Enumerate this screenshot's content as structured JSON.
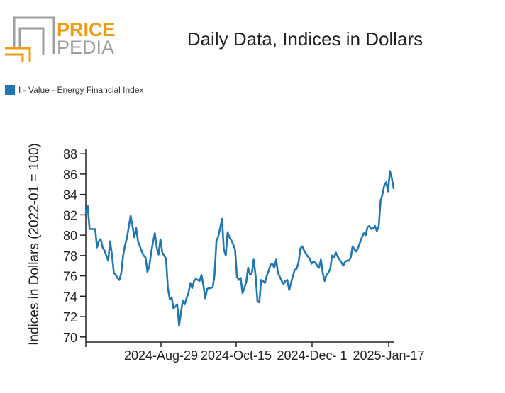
{
  "logo": {
    "line1": "PRICE",
    "line2": "PEDIA"
  },
  "chart_data": {
    "type": "line",
    "title": "Daily Data, Indices in Dollars",
    "xlabel": "",
    "ylabel": "Indices in Dollars (2022-01 = 100)",
    "ylim": [
      69.5,
      88.5
    ],
    "yticks": [
      70,
      72,
      74,
      76,
      78,
      80,
      82,
      84,
      86,
      88
    ],
    "xtick_labels": [
      "2024-Aug-29",
      "2024-Oct-15",
      "2024-Dec- 1",
      "2025-Jan-17"
    ],
    "grid": false,
    "legend_position": "top-left",
    "series": [
      {
        "name": "I - Value - Energy Financial Index",
        "color": "#1f77b4",
        "values": [
          82.2,
          82.9,
          80.6,
          80.6,
          80.6,
          80.6,
          78.8,
          79.4,
          79.6,
          78.8,
          78.5,
          78.0,
          77.5,
          79.4,
          78.1,
          76.3,
          76.1,
          75.8,
          75.6,
          76.3,
          78.0,
          79.0,
          79.7,
          80.8,
          81.9,
          80.9,
          79.8,
          80.7,
          79.4,
          78.9,
          78.4,
          78.0,
          77.8,
          76.4,
          76.9,
          78.3,
          79.3,
          80.2,
          78.8,
          78.1,
          79.6,
          78.3,
          78.0,
          77.7,
          74.8,
          73.7,
          73.9,
          72.8,
          73.0,
          73.2,
          71.1,
          72.4,
          73.6,
          73.2,
          73.8,
          74.3,
          75.3,
          74.8,
          75.5,
          75.7,
          75.6,
          75.5,
          76.1,
          75.1,
          73.8,
          74.7,
          74.8,
          74.8,
          74.9,
          76.1,
          79.4,
          79.9,
          80.7,
          81.6,
          78.6,
          78.0,
          80.3,
          79.8,
          79.5,
          79.1,
          78.6,
          75.9,
          75.6,
          75.8,
          74.3,
          74.8,
          75.4,
          76.8,
          76.1,
          76.3,
          77.6,
          76.0,
          73.5,
          73.4,
          75.6,
          75.5,
          75.3,
          76.0,
          76.5,
          77.1,
          77.2,
          76.8,
          77.6,
          76.3,
          75.9,
          75.5,
          75.2,
          75.5,
          75.6,
          74.6,
          75.3,
          76.0,
          76.6,
          76.7,
          77.3,
          78.7,
          78.9,
          78.5,
          78.2,
          77.9,
          77.7,
          77.2,
          77.4,
          77.3,
          77.0,
          76.8,
          77.6,
          76.3,
          75.5,
          76.1,
          76.3,
          76.7,
          78.0,
          77.8,
          78.3,
          77.9,
          77.6,
          77.3,
          77.0,
          77.4,
          77.5,
          77.5,
          77.8,
          78.9,
          78.6,
          78.4,
          78.8,
          79.3,
          79.8,
          80.2,
          80.0,
          80.8,
          80.9,
          80.6,
          80.7,
          80.9,
          80.4,
          80.9,
          83.4,
          84.0,
          84.9,
          85.2,
          84.3,
          86.3,
          85.6,
          84.6
        ]
      }
    ]
  }
}
